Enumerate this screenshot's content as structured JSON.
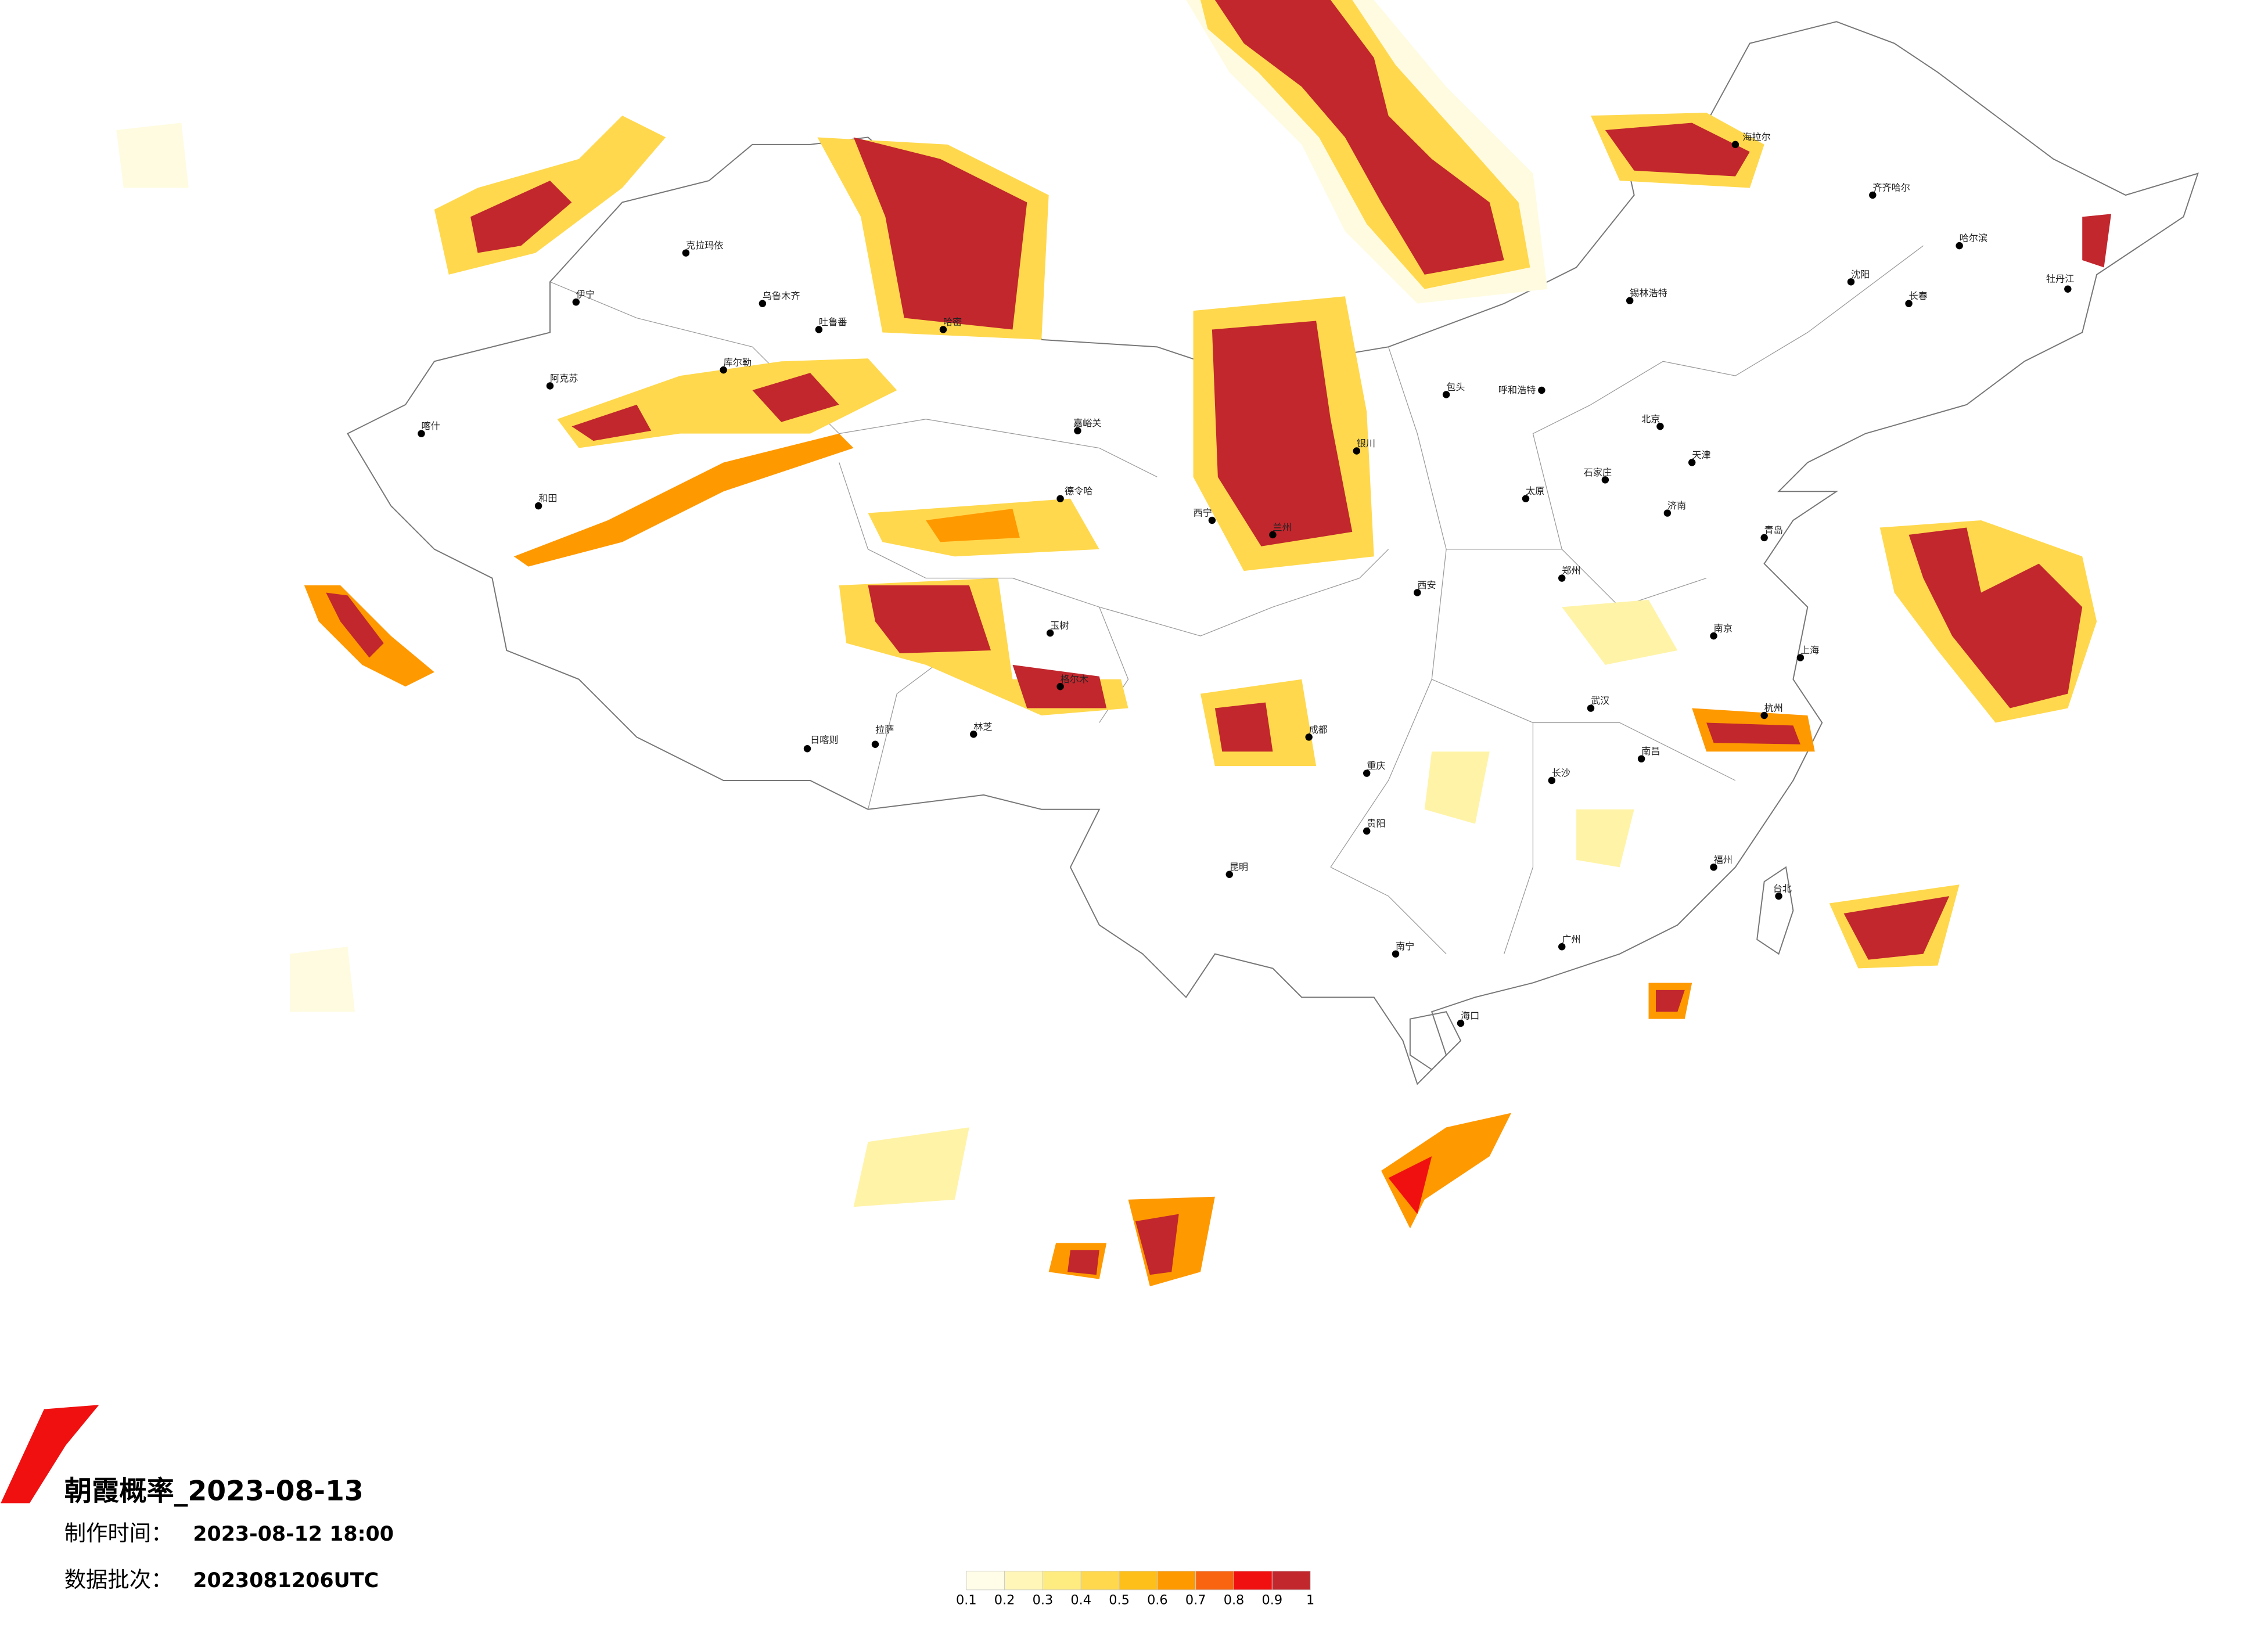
{
  "title": "朝霞概率_2023-08-13",
  "made_label": "制作时间：",
  "made_time": "2023-08-12 18:00",
  "batch_label": "数据批次：",
  "batch": "2023081206UTC",
  "legend": {
    "bins": [
      0.1,
      0.2,
      0.3,
      0.4,
      0.5,
      0.6,
      0.7,
      0.8,
      0.9,
      1
    ],
    "colors": [
      "#fffde8",
      "#fff6b8",
      "#ffec80",
      "#ffd84d",
      "#ffbf1a",
      "#ff9900",
      "#f86410",
      "#f01010",
      "#c1272d"
    ]
  },
  "cities": [
    "克拉玛依",
    "乌鲁木齐",
    "吐鲁番",
    "伊宁",
    "阿克苏",
    "库尔勒",
    "和田",
    "喀什",
    "哈密",
    "嘉峪关",
    "德令哈",
    "格尔木",
    "拉萨",
    "日喀则",
    "林芝",
    "玉树",
    "西宁",
    "兰州",
    "银川",
    "呼和浩特",
    "包头",
    "北京",
    "天津",
    "石家庄",
    "太原",
    "西安",
    "郑州",
    "济南",
    "青岛",
    "南京",
    "上海",
    "杭州",
    "武汉",
    "长沙",
    "南昌",
    "福州",
    "广州",
    "南宁",
    "海口",
    "成都",
    "重庆",
    "贵阳",
    "昆明",
    "沈阳",
    "长春",
    "哈尔滨",
    "齐齐哈尔",
    "海拉尔",
    "锡林浩特",
    "牡丹江",
    "台北"
  ]
}
